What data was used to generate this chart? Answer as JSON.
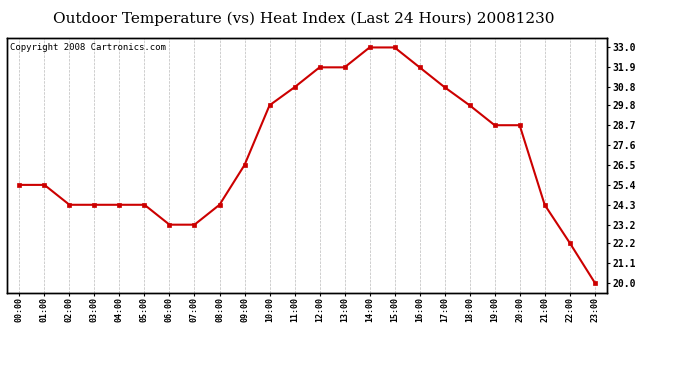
{
  "title": "Outdoor Temperature (vs) Heat Index (Last 24 Hours) 20081230",
  "copyright": "Copyright 2008 Cartronics.com",
  "hours": [
    "00:00",
    "01:00",
    "02:00",
    "03:00",
    "04:00",
    "05:00",
    "06:00",
    "07:00",
    "08:00",
    "09:00",
    "10:00",
    "11:00",
    "12:00",
    "13:00",
    "14:00",
    "15:00",
    "16:00",
    "17:00",
    "18:00",
    "19:00",
    "20:00",
    "21:00",
    "22:00",
    "23:00"
  ],
  "values": [
    25.4,
    25.4,
    24.3,
    24.3,
    24.3,
    24.3,
    23.2,
    23.2,
    24.3,
    26.5,
    29.8,
    30.8,
    31.9,
    31.9,
    33.0,
    33.0,
    31.9,
    30.8,
    29.8,
    28.7,
    28.7,
    24.3,
    22.2,
    20.0
  ],
  "line_color": "#cc0000",
  "marker_color": "#cc0000",
  "bg_color": "#ffffff",
  "plot_bg_color": "#ffffff",
  "grid_color": "#aaaaaa",
  "y_ticks": [
    20.0,
    21.1,
    22.2,
    23.2,
    24.3,
    25.4,
    26.5,
    27.6,
    28.7,
    29.8,
    30.8,
    31.9,
    33.0
  ],
  "ylim": [
    19.45,
    33.55
  ],
  "title_fontsize": 11,
  "copyright_fontsize": 6.5
}
